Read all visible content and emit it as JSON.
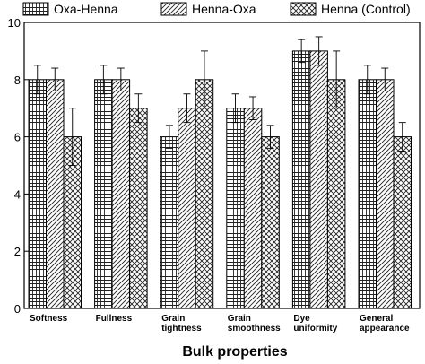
{
  "chart_data": {
    "type": "bar",
    "xlabel": "Bulk properties",
    "ylabel": "",
    "ylim": [
      0,
      10
    ],
    "yticks": [
      0,
      2,
      4,
      6,
      8,
      10
    ],
    "categories": [
      [
        "Softness"
      ],
      [
        "Fullness"
      ],
      [
        "Grain",
        "tightness"
      ],
      [
        "Grain",
        "smoothness"
      ],
      [
        "Dye",
        "uniformity"
      ],
      [
        "General",
        "appearance"
      ]
    ],
    "series": [
      {
        "name": "Oxa-Henna",
        "pattern": "grid-fine",
        "values": [
          8,
          8,
          6,
          7,
          9,
          8
        ],
        "errors": [
          0.5,
          0.5,
          0.4,
          0.5,
          0.4,
          0.5
        ]
      },
      {
        "name": "Henna-Oxa",
        "pattern": "diagonal",
        "values": [
          8,
          8,
          7,
          7,
          9,
          8
        ],
        "errors": [
          0.4,
          0.4,
          0.5,
          0.4,
          0.5,
          0.4
        ]
      },
      {
        "name": "Henna (Control)",
        "pattern": "crosshatch",
        "values": [
          6,
          7,
          8,
          6,
          8,
          6
        ],
        "errors": [
          1.0,
          0.5,
          1.0,
          0.4,
          1.0,
          0.5
        ]
      }
    ],
    "legend_position": "top",
    "grid": false
  }
}
